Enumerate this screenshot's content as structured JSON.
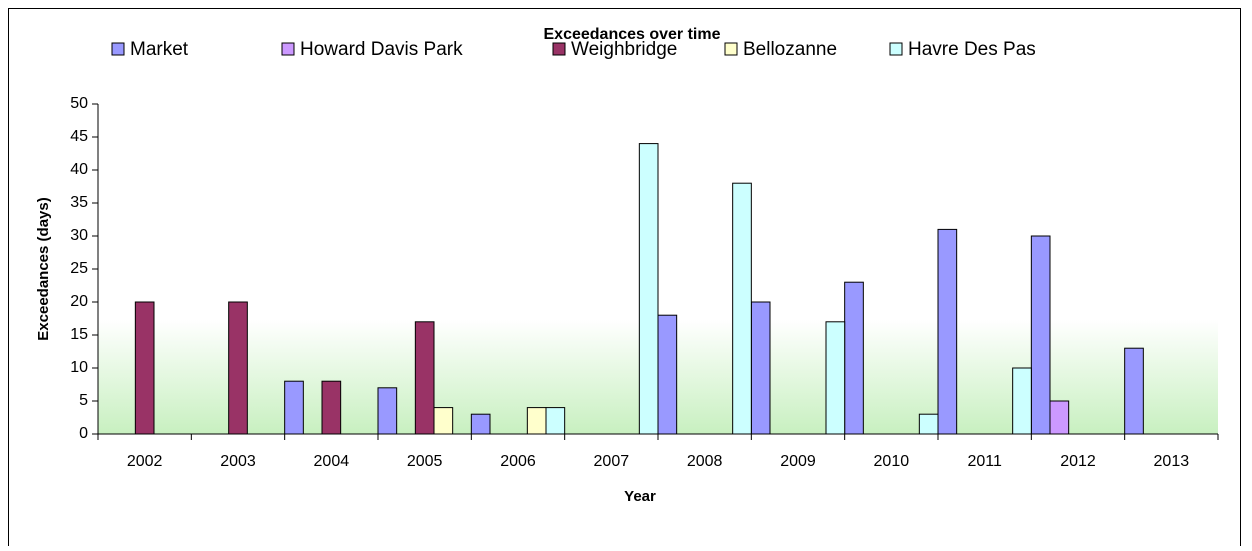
{
  "chart_data": {
    "type": "bar",
    "title": "Exceedances over time",
    "x_label": "Year",
    "y_label": "Exceedances (days)",
    "categories": [
      "2002",
      "2003",
      "2004",
      "2005",
      "2006",
      "2007",
      "2008",
      "2009",
      "2010",
      "2011",
      "2012",
      "2013"
    ],
    "series": [
      {
        "name": "Market",
        "color": "#9999ff",
        "values": [
          null,
          null,
          8,
          7,
          3,
          null,
          18,
          20,
          23,
          31,
          30,
          13
        ]
      },
      {
        "name": "Howard Davis Park",
        "color": "#cc99ff",
        "values": [
          null,
          null,
          null,
          null,
          null,
          null,
          null,
          null,
          null,
          null,
          5,
          null
        ]
      },
      {
        "name": "Weighbridge",
        "color": "#993366",
        "values": [
          20,
          20,
          8,
          17,
          null,
          null,
          null,
          null,
          null,
          null,
          null,
          null
        ]
      },
      {
        "name": "Bellozanne",
        "color": "#ffffcc",
        "values": [
          null,
          null,
          null,
          4,
          4,
          null,
          null,
          null,
          null,
          null,
          null,
          null
        ]
      },
      {
        "name": "Havre Des Pas",
        "color": "#ccffff",
        "values": [
          null,
          null,
          null,
          null,
          4,
          44,
          38,
          17,
          3,
          10,
          null,
          null
        ]
      }
    ],
    "ylim": [
      0,
      50
    ],
    "yticks": [
      0,
      5,
      10,
      15,
      20,
      25,
      30,
      35,
      40,
      45,
      50
    ],
    "legend": "top"
  }
}
